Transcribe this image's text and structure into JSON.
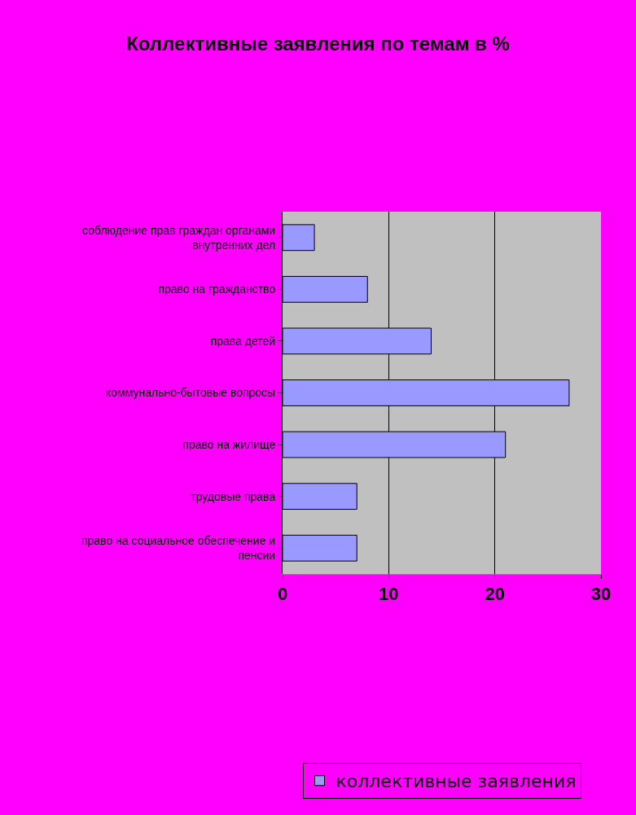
{
  "chart_data": {
    "type": "bar",
    "orientation": "horizontal",
    "title": "Коллективные заявления по темам в %",
    "categories": [
      "соблюдение прав граждан органами внутренних дел",
      "право на гражданство",
      "права детей",
      "коммунально-бытовые вопросы",
      "право на жилище",
      "трудовые права",
      "право на социальное обеспечение и пенсии"
    ],
    "series": [
      {
        "name": "коллективные заявления",
        "color": "#9999ff",
        "values": [
          3,
          8,
          14,
          27,
          21,
          7,
          7
        ]
      }
    ],
    "xlim": [
      0,
      30
    ],
    "xticks": [
      0,
      10,
      20,
      30
    ],
    "grid": "x",
    "legend": "bottom"
  }
}
